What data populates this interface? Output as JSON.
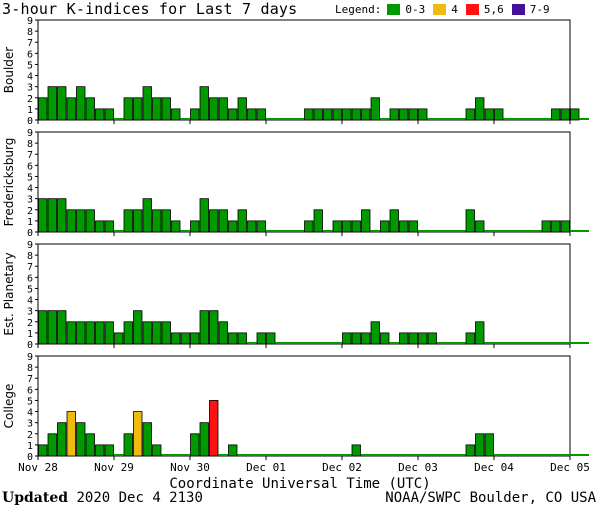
{
  "title": "3-hour K-indices for Last 7 days",
  "legend": {
    "label": "Legend:",
    "items": [
      {
        "label": "0-3",
        "color": "#009900"
      },
      {
        "label": "4",
        "color": "#eebb11"
      },
      {
        "label": "5,6",
        "color": "#ff1111"
      },
      {
        "label": "7-9",
        "color": "#441199"
      }
    ]
  },
  "footer": {
    "updated_label": "Updated",
    "updated_value": "2020 Dec  4 2130",
    "source": "NOAA/SWPC Boulder, CO USA"
  },
  "chart_data": {
    "type": "bar",
    "xlabel": "Coordinate Universal Time (UTC)",
    "x_ticks": [
      "Nov 28",
      "Nov 29",
      "Nov 30",
      "Dec 01",
      "Dec 02",
      "Dec 03",
      "Dec 04",
      "Dec 05"
    ],
    "bins_per_day": 8,
    "ylim": [
      0,
      9
    ],
    "y_ticks": [
      0,
      1,
      2,
      3,
      4,
      5,
      6,
      7,
      8,
      9
    ],
    "color_scale": [
      {
        "range": "0-3",
        "color": "#009900"
      },
      {
        "range": "4",
        "color": "#eebb11"
      },
      {
        "range": "5,6",
        "color": "#ff1111"
      },
      {
        "range": "7-9",
        "color": "#441199"
      }
    ],
    "panels": [
      {
        "name": "Boulder",
        "values": [
          2,
          3,
          3,
          2,
          3,
          2,
          1,
          1,
          0,
          2,
          2,
          3,
          2,
          2,
          1,
          0,
          1,
          3,
          2,
          2,
          1,
          2,
          1,
          1,
          0,
          0,
          0,
          0,
          1,
          1,
          1,
          1,
          1,
          1,
          1,
          2,
          0,
          1,
          1,
          1,
          1,
          0,
          0,
          0,
          0,
          1,
          2,
          1,
          1,
          0,
          0,
          0,
          0,
          0,
          1,
          1,
          1,
          0
        ]
      },
      {
        "name": "Fredericksburg",
        "values": [
          3,
          3,
          3,
          2,
          2,
          2,
          1,
          1,
          0,
          2,
          2,
          3,
          2,
          2,
          1,
          0,
          1,
          3,
          2,
          2,
          1,
          2,
          1,
          1,
          0,
          0,
          0,
          0,
          1,
          2,
          0,
          1,
          1,
          1,
          2,
          0,
          1,
          2,
          1,
          1,
          0,
          0,
          0,
          0,
          0,
          2,
          1,
          0,
          0,
          0,
          0,
          0,
          0,
          1,
          1,
          1,
          0,
          0
        ]
      },
      {
        "name": "Est. Planetary",
        "values": [
          3,
          3,
          3,
          2,
          2,
          2,
          2,
          2,
          1,
          2,
          3,
          2,
          2,
          2,
          1,
          1,
          1,
          3,
          3,
          2,
          1,
          1,
          0,
          1,
          1,
          0,
          0,
          0,
          0,
          0,
          0,
          0,
          1,
          1,
          1,
          2,
          1,
          0,
          1,
          1,
          1,
          1,
          0,
          0,
          0,
          1,
          2,
          0,
          0,
          0,
          0,
          0,
          0,
          0,
          0,
          0,
          0,
          0
        ]
      },
      {
        "name": "College",
        "values": [
          1,
          2,
          3,
          4,
          3,
          2,
          1,
          1,
          0,
          2,
          4,
          3,
          1,
          0,
          0,
          0,
          2,
          3,
          5,
          0,
          1,
          0,
          0,
          0,
          0,
          0,
          0,
          0,
          0,
          0,
          0,
          0,
          0,
          1,
          0,
          0,
          0,
          0,
          0,
          0,
          0,
          0,
          0,
          0,
          0,
          1,
          2,
          2,
          0,
          0,
          0,
          0,
          0,
          0,
          0,
          0,
          0,
          0
        ]
      }
    ]
  }
}
